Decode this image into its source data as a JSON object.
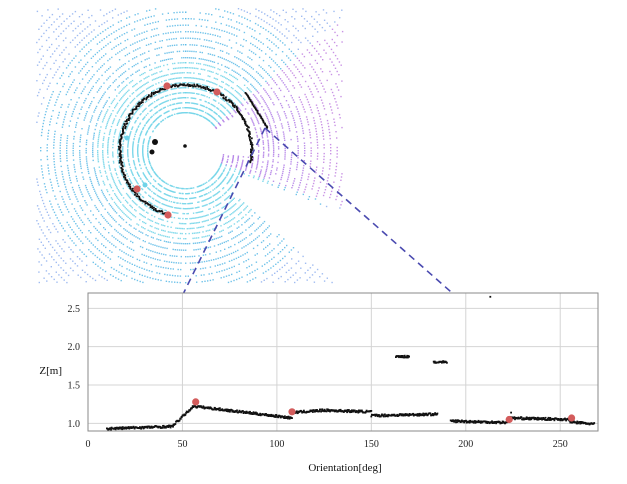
{
  "colors": {
    "scan_light": "#6fd3e8",
    "scan_mid": "#58b9e6",
    "scan_far": "#8fb0ee",
    "scan_violet": "#b07ce6",
    "scan_purple": "#c080e0",
    "boundary": "#111111",
    "marker": "#d35c5c",
    "zoom_line": "#4a4ab0",
    "grid": "#d4d4d4",
    "points": "#111111"
  },
  "chart_data": [
    {
      "type": "scatter",
      "title": "",
      "xlabel": "",
      "ylabel": "",
      "boundary_ring_angles_deg": [
        15,
        45,
        75,
        105,
        135,
        165,
        195,
        225,
        255
      ],
      "marker_angles_deg": [
        15,
        75,
        142,
        235,
        278
      ]
    },
    {
      "type": "scatter",
      "title": "",
      "xlabel": "Orientation[deg]",
      "ylabel": "Z[m]",
      "xlim": [
        0,
        270
      ],
      "ylim": [
        0.9,
        2.7
      ],
      "xticks": [
        "0",
        "50",
        "100",
        "150",
        "200",
        "250"
      ],
      "yticks": [
        "1.0",
        "1.5",
        "2.0",
        "2.5"
      ],
      "grid": true,
      "legend": "none",
      "segments": [
        {
          "x_start": 10,
          "x_end": 45,
          "y_start": 0.93,
          "y_end": 0.96
        },
        {
          "x_start": 45,
          "x_end": 57,
          "y_start": 0.97,
          "y_end": 1.25
        },
        {
          "x_start": 57,
          "x_end": 108,
          "y_start": 1.22,
          "y_end": 1.07
        },
        {
          "x_start": 108,
          "x_end": 125,
          "y_start": 1.14,
          "y_end": 1.17
        },
        {
          "x_start": 125,
          "x_end": 150,
          "y_start": 1.17,
          "y_end": 1.15
        },
        {
          "x_start": 150,
          "x_end": 185,
          "y_start": 1.1,
          "y_end": 1.12
        },
        {
          "x_start": 192,
          "x_end": 222,
          "y_start": 1.03,
          "y_end": 1.01
        },
        {
          "x_start": 222,
          "x_end": 255,
          "y_start": 1.07,
          "y_end": 1.05
        },
        {
          "x_start": 255,
          "x_end": 268,
          "y_start": 1.02,
          "y_end": 0.99
        }
      ],
      "clusters": [
        {
          "x_start": 163,
          "x_end": 170,
          "y": 1.87
        },
        {
          "x_start": 183,
          "x_end": 190,
          "y": 1.8
        }
      ],
      "outliers": [
        {
          "x": 213,
          "y": 2.65
        },
        {
          "x": 224,
          "y": 1.14
        }
      ],
      "markers": [
        {
          "x": 57,
          "y": 1.28
        },
        {
          "x": 108,
          "y": 1.15
        },
        {
          "x": 223,
          "y": 1.05
        },
        {
          "x": 256,
          "y": 1.07
        }
      ]
    }
  ]
}
